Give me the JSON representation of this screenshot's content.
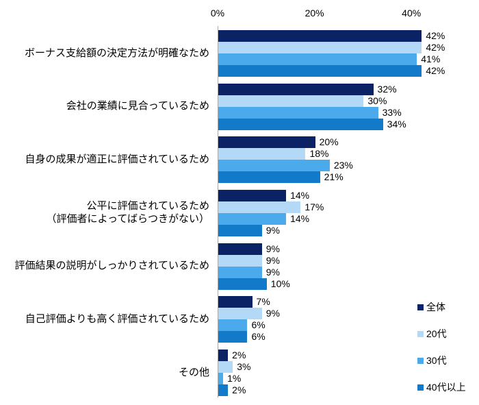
{
  "chart_data": {
    "type": "bar",
    "orientation": "horizontal",
    "title": "",
    "xlabel": "",
    "ylabel": "",
    "grid": false,
    "background": "#FFFFFF",
    "axis_line_color": "#A9A9A9",
    "text_color": "#000000",
    "x_axis": {
      "position": "top",
      "max": 47,
      "ticks": [
        {
          "label": "0%",
          "value": 0
        },
        {
          "label": "20%",
          "value": 20
        },
        {
          "label": "40%",
          "value": 40
        }
      ]
    },
    "categories": [
      "ボーナス支給額の決定方法が明確なため",
      "会社の業績に見合っているため",
      "自身の成果が適正に評価されているため",
      "公平に評価されているため\n（評価者によってばらつきがない）",
      "評価結果の説明がしっかりされているため",
      "自己評価よりも高く評価されているため",
      "その他"
    ],
    "series": [
      {
        "name": "全体",
        "color": "#0B2265",
        "values": [
          42,
          32,
          20,
          14,
          9,
          7,
          2
        ]
      },
      {
        "name": "20代",
        "color": "#B4D9F7",
        "values": [
          42,
          30,
          18,
          17,
          9,
          9,
          3
        ]
      },
      {
        "name": "30代",
        "color": "#4BAAEC",
        "values": [
          41,
          33,
          23,
          14,
          9,
          6,
          1
        ]
      },
      {
        "name": "40代以上",
        "color": "#137AC9",
        "values": [
          42,
          34,
          21,
          9,
          10,
          6,
          2
        ]
      }
    ],
    "value_label_suffix": "%",
    "legend": {
      "position": "bottom-right",
      "labels": [
        "全体",
        "20代",
        "30代",
        "40代以上"
      ]
    }
  }
}
